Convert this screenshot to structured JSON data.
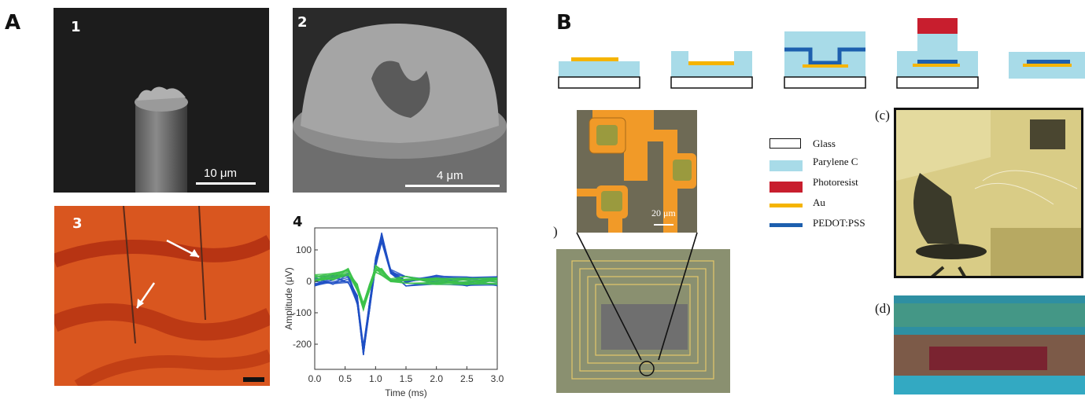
{
  "panels": {
    "a_label": "A",
    "b_label": "B"
  },
  "panel_a": {
    "sub1": {
      "num": "1",
      "scale_text": "10 μm"
    },
    "sub2": {
      "num": "2",
      "scale_text": "4 μm"
    },
    "sub3": {
      "num": "3"
    },
    "sub4": {
      "num": "4"
    }
  },
  "chart_data": {
    "type": "line",
    "xlabel": "Time (ms)",
    "ylabel": "Amplitude (μV)",
    "xlim": [
      0,
      3.0
    ],
    "ylim": [
      -280,
      170
    ],
    "x_ticks": [
      "0.0",
      "0.5",
      "1.0",
      "1.5",
      "2.0",
      "2.5",
      "3.0"
    ],
    "y_ticks": [
      "100",
      "0",
      "-100",
      "-200"
    ],
    "grid": false,
    "series": [
      {
        "color": "#1f4fc4",
        "x": [
          0,
          0.3,
          0.55,
          0.7,
          0.8,
          0.9,
          1.0,
          1.1,
          1.25,
          1.5,
          2.0,
          2.5,
          3.0
        ],
        "y": [
          0,
          5,
          10,
          -60,
          -220,
          -80,
          60,
          140,
          40,
          0,
          5,
          0,
          0
        ]
      },
      {
        "color": "#3cc24a",
        "x": [
          0,
          0.3,
          0.55,
          0.7,
          0.8,
          0.9,
          1.0,
          1.1,
          1.25,
          1.5,
          2.0,
          2.5,
          3.0
        ],
        "y": [
          10,
          15,
          30,
          -20,
          -80,
          -20,
          40,
          30,
          10,
          5,
          0,
          0,
          0
        ]
      }
    ]
  },
  "panel_b": {
    "legend": [
      {
        "label": "Glass",
        "color": "#ffffff"
      },
      {
        "label": "Parylene C",
        "color": "#a8dbe8"
      },
      {
        "label": "Photoresist",
        "color": "#c81e2e"
      },
      {
        "label": "Au",
        "color": "#f5b400"
      },
      {
        "label": "PEDOT:PSS",
        "color": "#1d5fae"
      }
    ],
    "micro_scale": "20 μm",
    "label_c": "(c)",
    "label_d": "(d)",
    "label_partial": ")"
  }
}
